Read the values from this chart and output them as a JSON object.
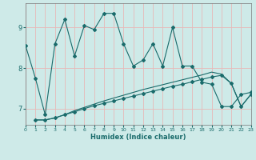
{
  "xlabel": "Humidex (Indice chaleur)",
  "bg_color": "#ceeae8",
  "grid_color": "#e8b8b8",
  "line_color": "#1a6b6b",
  "x_ticks": [
    0,
    1,
    2,
    3,
    4,
    5,
    6,
    7,
    8,
    9,
    10,
    11,
    12,
    13,
    14,
    15,
    16,
    17,
    18,
    19,
    20,
    21,
    22,
    23
  ],
  "y_ticks": [
    7,
    8,
    9
  ],
  "ylim": [
    6.6,
    9.6
  ],
  "xlim": [
    0,
    23
  ],
  "series1_x": [
    0,
    1,
    2,
    3,
    4,
    5,
    6,
    7,
    8,
    9,
    10,
    11,
    12,
    13,
    14,
    15,
    16,
    17,
    18,
    19,
    20,
    21,
    22,
    23
  ],
  "series1_y": [
    8.55,
    7.75,
    6.85,
    8.6,
    9.2,
    8.3,
    9.05,
    8.95,
    9.35,
    9.35,
    8.6,
    8.05,
    8.2,
    8.6,
    8.05,
    9.0,
    8.05,
    8.05,
    7.65,
    7.6,
    7.05,
    7.05,
    7.35,
    7.4
  ],
  "series2_x": [
    1,
    2,
    3,
    4,
    5,
    6,
    7,
    8,
    9,
    10,
    11,
    12,
    13,
    14,
    15,
    16,
    17,
    18,
    19,
    20,
    21,
    22,
    23
  ],
  "series2_y": [
    6.72,
    6.72,
    6.77,
    6.85,
    6.92,
    7.0,
    7.07,
    7.13,
    7.19,
    7.25,
    7.31,
    7.37,
    7.43,
    7.49,
    7.55,
    7.6,
    7.66,
    7.72,
    7.78,
    7.82,
    7.62,
    7.05,
    7.35
  ],
  "series3_x": [
    1,
    2,
    3,
    4,
    5,
    6,
    7,
    8,
    9,
    10,
    11,
    12,
    13,
    14,
    15,
    16,
    17,
    18,
    19,
    20,
    21,
    22,
    23
  ],
  "series3_y": [
    6.72,
    6.72,
    6.77,
    6.85,
    6.95,
    7.03,
    7.11,
    7.19,
    7.26,
    7.33,
    7.4,
    7.47,
    7.53,
    7.59,
    7.65,
    7.71,
    7.77,
    7.83,
    7.9,
    7.85,
    7.62,
    7.05,
    7.35
  ]
}
